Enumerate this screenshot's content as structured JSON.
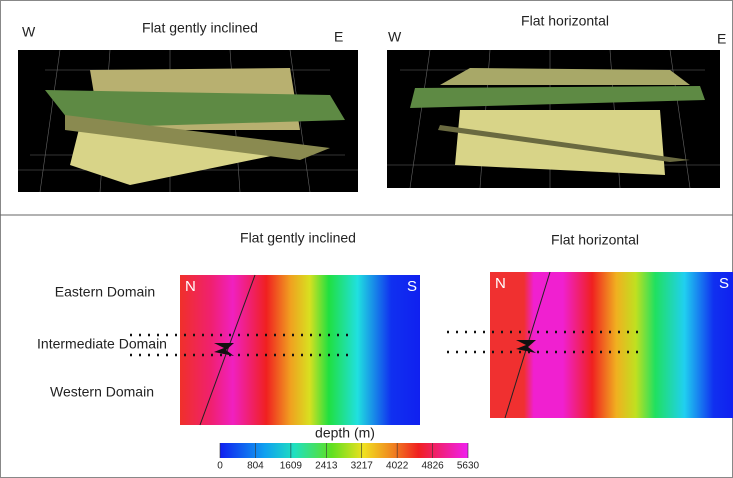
{
  "top": {
    "left": {
      "title": "Flat gently inclined",
      "west": "W",
      "east": "E"
    },
    "right": {
      "title": "Flat horizontal",
      "west": "W",
      "east": "E"
    }
  },
  "bottom": {
    "left": {
      "title": "Flat gently inclined",
      "north": "N",
      "south": "S"
    },
    "right": {
      "title": "Flat horizontal",
      "north": "N",
      "south": "S"
    },
    "domains": [
      "Eastern Domain",
      "Intermediate Domain",
      "Western Domain"
    ]
  },
  "colorbar": {
    "title": "depth (m)",
    "ticks": [
      0,
      804,
      1609,
      2413,
      3217,
      4022,
      4826,
      5630
    ]
  }
}
